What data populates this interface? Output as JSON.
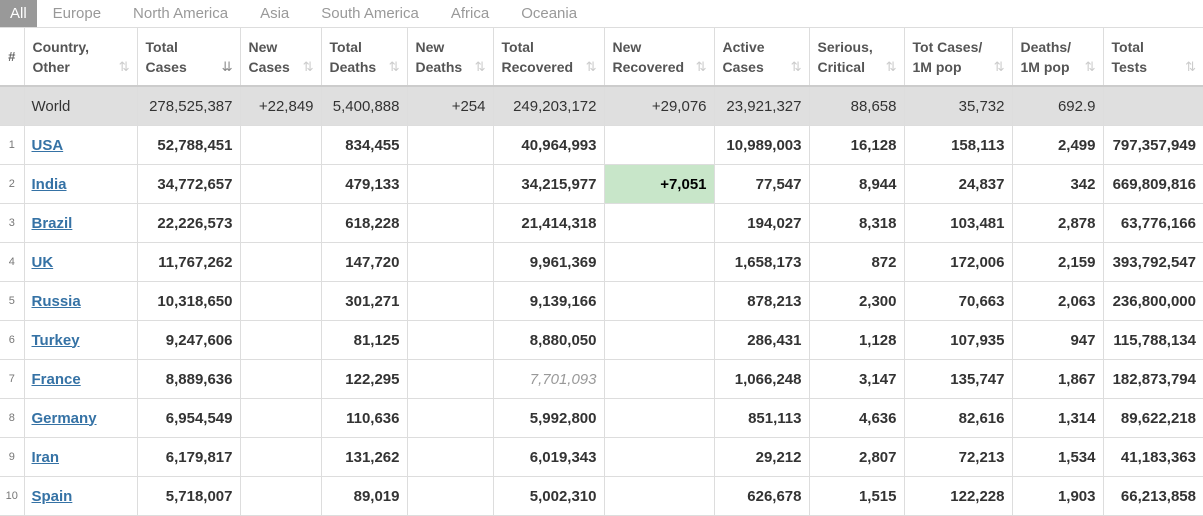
{
  "tabs": [
    "All",
    "Europe",
    "North America",
    "Asia",
    "South America",
    "Africa",
    "Oceania"
  ],
  "headers": {
    "num": "#",
    "country": [
      "Country,",
      "Other"
    ],
    "total_cases": [
      "Total",
      "Cases"
    ],
    "new_cases": [
      "New",
      "Cases"
    ],
    "total_deaths": [
      "Total",
      "Deaths"
    ],
    "new_deaths": [
      "New",
      "Deaths"
    ],
    "total_recovered": [
      "Total",
      "Recovered"
    ],
    "new_recovered": [
      "New",
      "Recovered"
    ],
    "active_cases": [
      "Active",
      "Cases"
    ],
    "serious": [
      "Serious,",
      "Critical"
    ],
    "cases_per_m": [
      "Tot Cases/",
      "1M pop"
    ],
    "deaths_per_m": [
      "Deaths/",
      "1M pop"
    ],
    "total_tests": [
      "Total",
      "Tests"
    ]
  },
  "world": {
    "country": "World",
    "total_cases": "278,525,387",
    "new_cases": "+22,849",
    "total_deaths": "5,400,888",
    "new_deaths": "+254",
    "total_recovered": "249,203,172",
    "new_recovered": "+29,076",
    "active_cases": "23,921,327",
    "serious": "88,658",
    "cases_per_m": "35,732",
    "deaths_per_m": "692.9",
    "total_tests": ""
  },
  "rows": [
    {
      "num": "1",
      "country": "USA",
      "total_cases": "52,788,451",
      "new_cases": "",
      "total_deaths": "834,455",
      "new_deaths": "",
      "total_recovered": "40,964,993",
      "new_recovered": "",
      "active_cases": "10,989,003",
      "serious": "16,128",
      "cases_per_m": "158,113",
      "deaths_per_m": "2,499",
      "total_tests": "797,357,949"
    },
    {
      "num": "2",
      "country": "India",
      "total_cases": "34,772,657",
      "new_cases": "",
      "total_deaths": "479,133",
      "new_deaths": "",
      "total_recovered": "34,215,977",
      "new_recovered": "+7,051",
      "active_cases": "77,547",
      "serious": "8,944",
      "cases_per_m": "24,837",
      "deaths_per_m": "342",
      "total_tests": "669,809,816"
    },
    {
      "num": "3",
      "country": "Brazil",
      "total_cases": "22,226,573",
      "new_cases": "",
      "total_deaths": "618,228",
      "new_deaths": "",
      "total_recovered": "21,414,318",
      "new_recovered": "",
      "active_cases": "194,027",
      "serious": "8,318",
      "cases_per_m": "103,481",
      "deaths_per_m": "2,878",
      "total_tests": "63,776,166"
    },
    {
      "num": "4",
      "country": "UK",
      "total_cases": "11,767,262",
      "new_cases": "",
      "total_deaths": "147,720",
      "new_deaths": "",
      "total_recovered": "9,961,369",
      "new_recovered": "",
      "active_cases": "1,658,173",
      "serious": "872",
      "cases_per_m": "172,006",
      "deaths_per_m": "2,159",
      "total_tests": "393,792,547"
    },
    {
      "num": "5",
      "country": "Russia",
      "total_cases": "10,318,650",
      "new_cases": "",
      "total_deaths": "301,271",
      "new_deaths": "",
      "total_recovered": "9,139,166",
      "new_recovered": "",
      "active_cases": "878,213",
      "serious": "2,300",
      "cases_per_m": "70,663",
      "deaths_per_m": "2,063",
      "total_tests": "236,800,000"
    },
    {
      "num": "6",
      "country": "Turkey",
      "total_cases": "9,247,606",
      "new_cases": "",
      "total_deaths": "81,125",
      "new_deaths": "",
      "total_recovered": "8,880,050",
      "new_recovered": "",
      "active_cases": "286,431",
      "serious": "1,128",
      "cases_per_m": "107,935",
      "deaths_per_m": "947",
      "total_tests": "115,788,134"
    },
    {
      "num": "7",
      "country": "France",
      "total_cases": "8,889,636",
      "new_cases": "",
      "total_deaths": "122,295",
      "new_deaths": "",
      "total_recovered": "7,701,093",
      "new_recovered": "",
      "active_cases": "1,066,248",
      "serious": "3,147",
      "cases_per_m": "135,747",
      "deaths_per_m": "1,867",
      "total_tests": "182,873,794"
    },
    {
      "num": "8",
      "country": "Germany",
      "total_cases": "6,954,549",
      "new_cases": "",
      "total_deaths": "110,636",
      "new_deaths": "",
      "total_recovered": "5,992,800",
      "new_recovered": "",
      "active_cases": "851,113",
      "serious": "4,636",
      "cases_per_m": "82,616",
      "deaths_per_m": "1,314",
      "total_tests": "89,622,218"
    },
    {
      "num": "9",
      "country": "Iran",
      "total_cases": "6,179,817",
      "new_cases": "",
      "total_deaths": "131,262",
      "new_deaths": "",
      "total_recovered": "6,019,343",
      "new_recovered": "",
      "active_cases": "29,212",
      "serious": "2,807",
      "cases_per_m": "72,213",
      "deaths_per_m": "1,534",
      "total_tests": "41,183,363"
    },
    {
      "num": "10",
      "country": "Spain",
      "total_cases": "5,718,007",
      "new_cases": "",
      "total_deaths": "89,019",
      "new_deaths": "",
      "total_recovered": "5,002,310",
      "new_recovered": "",
      "active_cases": "626,678",
      "serious": "1,515",
      "cases_per_m": "122,228",
      "deaths_per_m": "1,903",
      "total_tests": "66,213,858"
    }
  ],
  "colors": {
    "link": "#3572a5",
    "new_recovered_highlight": "#c8e6c9",
    "world_row_bg": "#dfdfdf",
    "active_tab_bg": "#999999"
  }
}
